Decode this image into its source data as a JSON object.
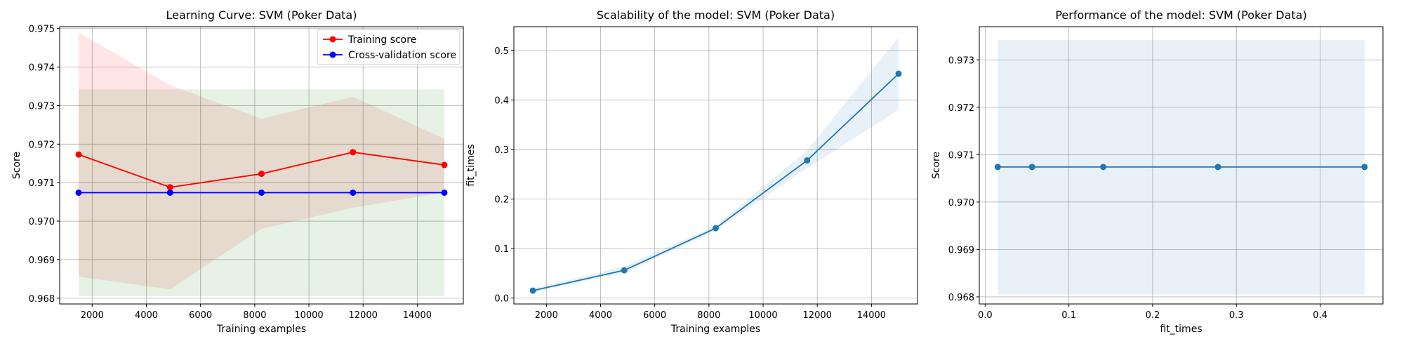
{
  "chart_data": [
    {
      "type": "line",
      "title": "Learning Curve: SVM (Poker Data)",
      "xlabel": "Training examples",
      "ylabel": "Score",
      "xlim": [
        800,
        15700
      ],
      "ylim": [
        0.96785,
        0.97505
      ],
      "xticks": [
        2000,
        4000,
        6000,
        8000,
        10000,
        12000,
        14000
      ],
      "xtick_labels": [
        "2000",
        "4000",
        "6000",
        "8000",
        "10000",
        "12000",
        "14000"
      ],
      "yticks": [
        0.968,
        0.969,
        0.97,
        0.971,
        0.972,
        0.973,
        0.974,
        0.975
      ],
      "ytick_labels": [
        "0.968",
        "0.969",
        "0.970",
        "0.971",
        "0.972",
        "0.973",
        "0.974",
        "0.975"
      ],
      "grid": true,
      "legend": "upper right",
      "x": [
        1500,
        4875,
        8250,
        11625,
        15000
      ],
      "series": [
        {
          "name": "Training score",
          "color": "#ff0000",
          "values": [
            0.97173,
            0.97088,
            0.97123,
            0.97179,
            0.97146
          ],
          "band_lower": [
            0.96856,
            0.96823,
            0.9698,
            0.97035,
            0.97075
          ],
          "band_upper": [
            0.9749,
            0.97353,
            0.97266,
            0.97323,
            0.97214
          ],
          "band_color": "#ff0000"
        },
        {
          "name": "Cross-validation score",
          "color": "#0000ff",
          "values": [
            0.97074,
            0.97074,
            0.97074,
            0.97074,
            0.97074
          ],
          "band_lower": [
            0.96805,
            0.96805,
            0.96805,
            0.96805,
            0.96805
          ],
          "band_upper": [
            0.97342,
            0.97342,
            0.97342,
            0.97342,
            0.97342
          ],
          "band_color": "#008000"
        }
      ]
    },
    {
      "type": "line",
      "title": "Scalability of the model: SVM (Poker Data)",
      "xlabel": "Training examples",
      "ylabel": "fit_times",
      "xlim": [
        800,
        15700
      ],
      "ylim": [
        -0.012,
        0.548
      ],
      "xticks": [
        2000,
        4000,
        6000,
        8000,
        10000,
        12000,
        14000
      ],
      "xtick_labels": [
        "2000",
        "4000",
        "6000",
        "8000",
        "10000",
        "12000",
        "14000"
      ],
      "yticks": [
        0.0,
        0.1,
        0.2,
        0.3,
        0.4,
        0.5
      ],
      "ytick_labels": [
        "0.0",
        "0.1",
        "0.2",
        "0.3",
        "0.4",
        "0.5"
      ],
      "grid": true,
      "x": [
        1500,
        4875,
        8250,
        11625,
        15000
      ],
      "series": [
        {
          "color": "#1f77b4",
          "values": [
            0.015,
            0.056,
            0.141,
            0.278,
            0.453
          ],
          "band_lower": [
            0.011,
            0.051,
            0.136,
            0.262,
            0.38
          ],
          "band_upper": [
            0.019,
            0.064,
            0.146,
            0.298,
            0.527
          ],
          "band_color": "#1f77b4"
        }
      ]
    },
    {
      "type": "line",
      "title": "Performance of the model: SVM (Poker Data)",
      "xlabel": "fit_times",
      "ylabel": "Score",
      "xlim": [
        -0.007,
        0.475
      ],
      "ylim": [
        0.96785,
        0.9737
      ],
      "xticks": [
        0.0,
        0.1,
        0.2,
        0.3,
        0.4
      ],
      "xtick_labels": [
        "0.0",
        "0.1",
        "0.2",
        "0.3",
        "0.4"
      ],
      "yticks": [
        0.968,
        0.969,
        0.97,
        0.971,
        0.972,
        0.973
      ],
      "ytick_labels": [
        "0.968",
        "0.969",
        "0.970",
        "0.971",
        "0.972",
        "0.973"
      ],
      "grid": true,
      "x": [
        0.015,
        0.056,
        0.141,
        0.278,
        0.453
      ],
      "series": [
        {
          "color": "#1f77b4",
          "values": [
            0.97074,
            0.97074,
            0.97074,
            0.97074,
            0.97074
          ],
          "band_lower": [
            0.96805,
            0.96805,
            0.96805,
            0.96805,
            0.96805
          ],
          "band_upper": [
            0.97342,
            0.97342,
            0.97342,
            0.97342,
            0.97342
          ],
          "band_color": "#1f77b4"
        }
      ]
    }
  ]
}
